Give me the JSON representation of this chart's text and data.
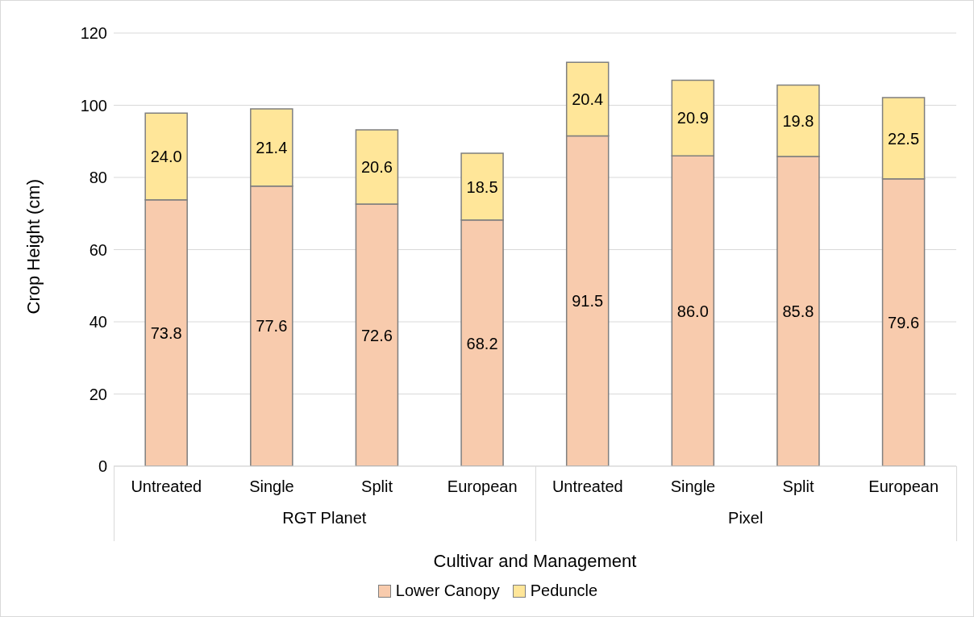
{
  "chart_data": {
    "type": "bar",
    "stacked": true,
    "categories": [
      "Untreated",
      "Single",
      "Split",
      "European",
      "Untreated",
      "Single",
      "Split",
      "European"
    ],
    "series": [
      {
        "name": "Lower Canopy",
        "color": "#f8cbad",
        "values": [
          73.8,
          77.6,
          72.6,
          68.2,
          91.5,
          86.0,
          85.8,
          79.6
        ],
        "value_labels": [
          "73.8",
          "77.6",
          "72.6",
          "68.2",
          "91.5",
          "86.0",
          "85.8",
          "79.6"
        ]
      },
      {
        "name": "Peduncle",
        "color": "#ffe699",
        "values": [
          24.0,
          21.4,
          20.6,
          18.5,
          20.4,
          20.9,
          19.8,
          22.5
        ],
        "value_labels": [
          "24.0",
          "21.4",
          "20.6",
          "18.5",
          "20.4",
          "20.9",
          "19.8",
          "22.5"
        ]
      }
    ],
    "ylim": [
      0,
      120
    ],
    "yticks": [
      0,
      20,
      40,
      60,
      80,
      100,
      120
    ],
    "ylabel": "Crop Height (cm)",
    "xlabel": "Cultivar and Management",
    "annotations": [
      "RGT Planet",
      "Pixel"
    ],
    "grid": "y",
    "legend": "bottom"
  }
}
